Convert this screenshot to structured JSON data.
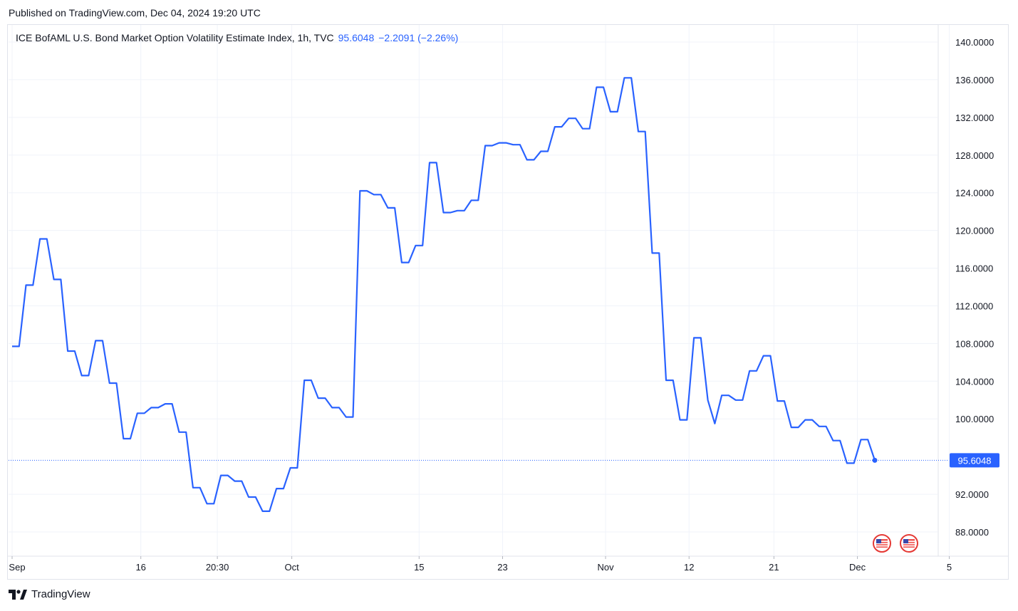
{
  "published": "Published on TradingView.com, Dec 04, 2024 19:20 UTC",
  "legend": {
    "title": "ICE BofAML U.S. Bond Market Option Volatility Estimate Index, 1h, TVC",
    "value": "95.6048",
    "change": "−2.2091 (−2.26%)"
  },
  "brand": "TradingView",
  "icons": [
    "us-flag-icon",
    "tradingview-logo-icon"
  ],
  "colors": {
    "line": "#2962ff",
    "grid": "#f0f3fa",
    "text": "#131722",
    "border": "#e0e3eb"
  },
  "chart_data": {
    "type": "line",
    "title": "ICE BofAML U.S. Bond Market Option Volatility Estimate Index, 1h, TVC",
    "ylim": [
      86.0,
      142.0
    ],
    "yticks": [
      "140.0000",
      "136.0000",
      "132.0000",
      "128.0000",
      "124.0000",
      "120.0000",
      "116.0000",
      "112.0000",
      "108.0000",
      "104.0000",
      "100.0000",
      "92.0000",
      "88.0000"
    ],
    "ytick_values": [
      140,
      136,
      132,
      128,
      124,
      120,
      116,
      112,
      108,
      104,
      100,
      92,
      88
    ],
    "xtick_labels": [
      "Sep",
      "16",
      "20:30",
      "Oct",
      "15",
      "23",
      "Nov",
      "12",
      "21",
      "Dec",
      "5"
    ],
    "xtick_index": [
      0,
      18.5,
      29.5,
      40.2,
      58.5,
      70.5,
      85.3,
      97.3,
      109.5,
      121.5,
      134.7
    ],
    "last_value": "95.6048",
    "grid": true,
    "series": [
      {
        "values": [
          107.7,
          107.7,
          114.2,
          114.2,
          119.1,
          119.1,
          114.8,
          114.8,
          107.2,
          107.2,
          104.6,
          104.6,
          108.3,
          108.3,
          103.8,
          103.8,
          97.9,
          97.9,
          100.6,
          100.6,
          101.2,
          101.2,
          101.6,
          101.6,
          98.6,
          98.6,
          92.7,
          92.7,
          91.0,
          91.0,
          94.0,
          94.0,
          93.4,
          93.4,
          91.7,
          91.7,
          90.2,
          90.2,
          92.6,
          92.6,
          94.8,
          94.8,
          104.1,
          104.1,
          102.2,
          102.2,
          101.2,
          101.2,
          100.2,
          100.2,
          124.2,
          124.2,
          123.8,
          123.8,
          122.4,
          122.4,
          116.6,
          116.6,
          118.4,
          118.4,
          127.2,
          127.2,
          121.9,
          121.9,
          122.1,
          122.1,
          123.2,
          123.2,
          129.0,
          129.0,
          129.3,
          129.3,
          129.1,
          129.1,
          127.5,
          127.5,
          128.4,
          128.4,
          131.0,
          131.0,
          131.9,
          131.9,
          130.8,
          130.8,
          135.2,
          135.2,
          132.6,
          132.6,
          136.2,
          136.2,
          130.5,
          130.5,
          117.6,
          117.6,
          104.1,
          104.1,
          99.9,
          99.9,
          108.6,
          108.6,
          102.0,
          99.5,
          102.5,
          102.5,
          102.0,
          102.0,
          105.1,
          105.1,
          106.7,
          106.7,
          101.9,
          101.9,
          99.1,
          99.1,
          99.9,
          99.9,
          99.2,
          99.2,
          97.7,
          97.7,
          95.3,
          95.3,
          97.8,
          97.8,
          95.6048
        ]
      }
    ]
  }
}
